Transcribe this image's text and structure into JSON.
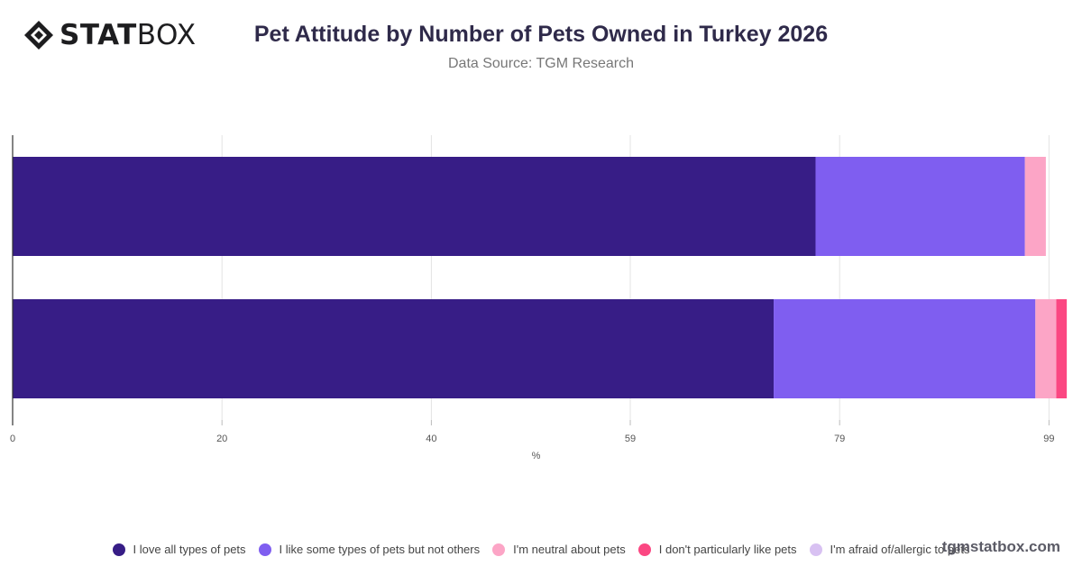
{
  "brand": {
    "name_bold": "STAT",
    "name_regular": "BOX",
    "credit": "tgmstatbox.com"
  },
  "header": {
    "title": "Pet Attitude by Number of Pets Owned in Turkey 2026",
    "subtitle": "Data Source: TGM Research"
  },
  "chart_data": {
    "type": "bar",
    "orientation": "horizontal",
    "stacked": true,
    "title": "Pet Attitude by Number of Pets Owned in Turkey 2026",
    "subtitle": "Data Source: TGM Research",
    "xlabel": "%",
    "ylabel": "",
    "xlim": [
      0,
      100
    ],
    "x_ticks": [
      0,
      20,
      40,
      59,
      79,
      99
    ],
    "grid": true,
    "legend_position": "bottom",
    "categories": [
      "",
      ""
    ],
    "series": [
      {
        "name": "I love all types of pets",
        "color": "#371d86",
        "values": [
          76.7,
          72.7
        ]
      },
      {
        "name": "I like some types of pets but not others",
        "color": "#7f5ef0",
        "values": [
          20.0,
          25.0
        ]
      },
      {
        "name": "I'm neutral about pets",
        "color": "#fca5c6",
        "values": [
          2.0,
          2.0
        ]
      },
      {
        "name": "I don't particularly like pets",
        "color": "#fb4782",
        "values": [
          0,
          1.0
        ]
      },
      {
        "name": "I'm afraid of/allergic to pets",
        "color": "#d8c1f2",
        "values": [
          0,
          0
        ]
      }
    ]
  }
}
